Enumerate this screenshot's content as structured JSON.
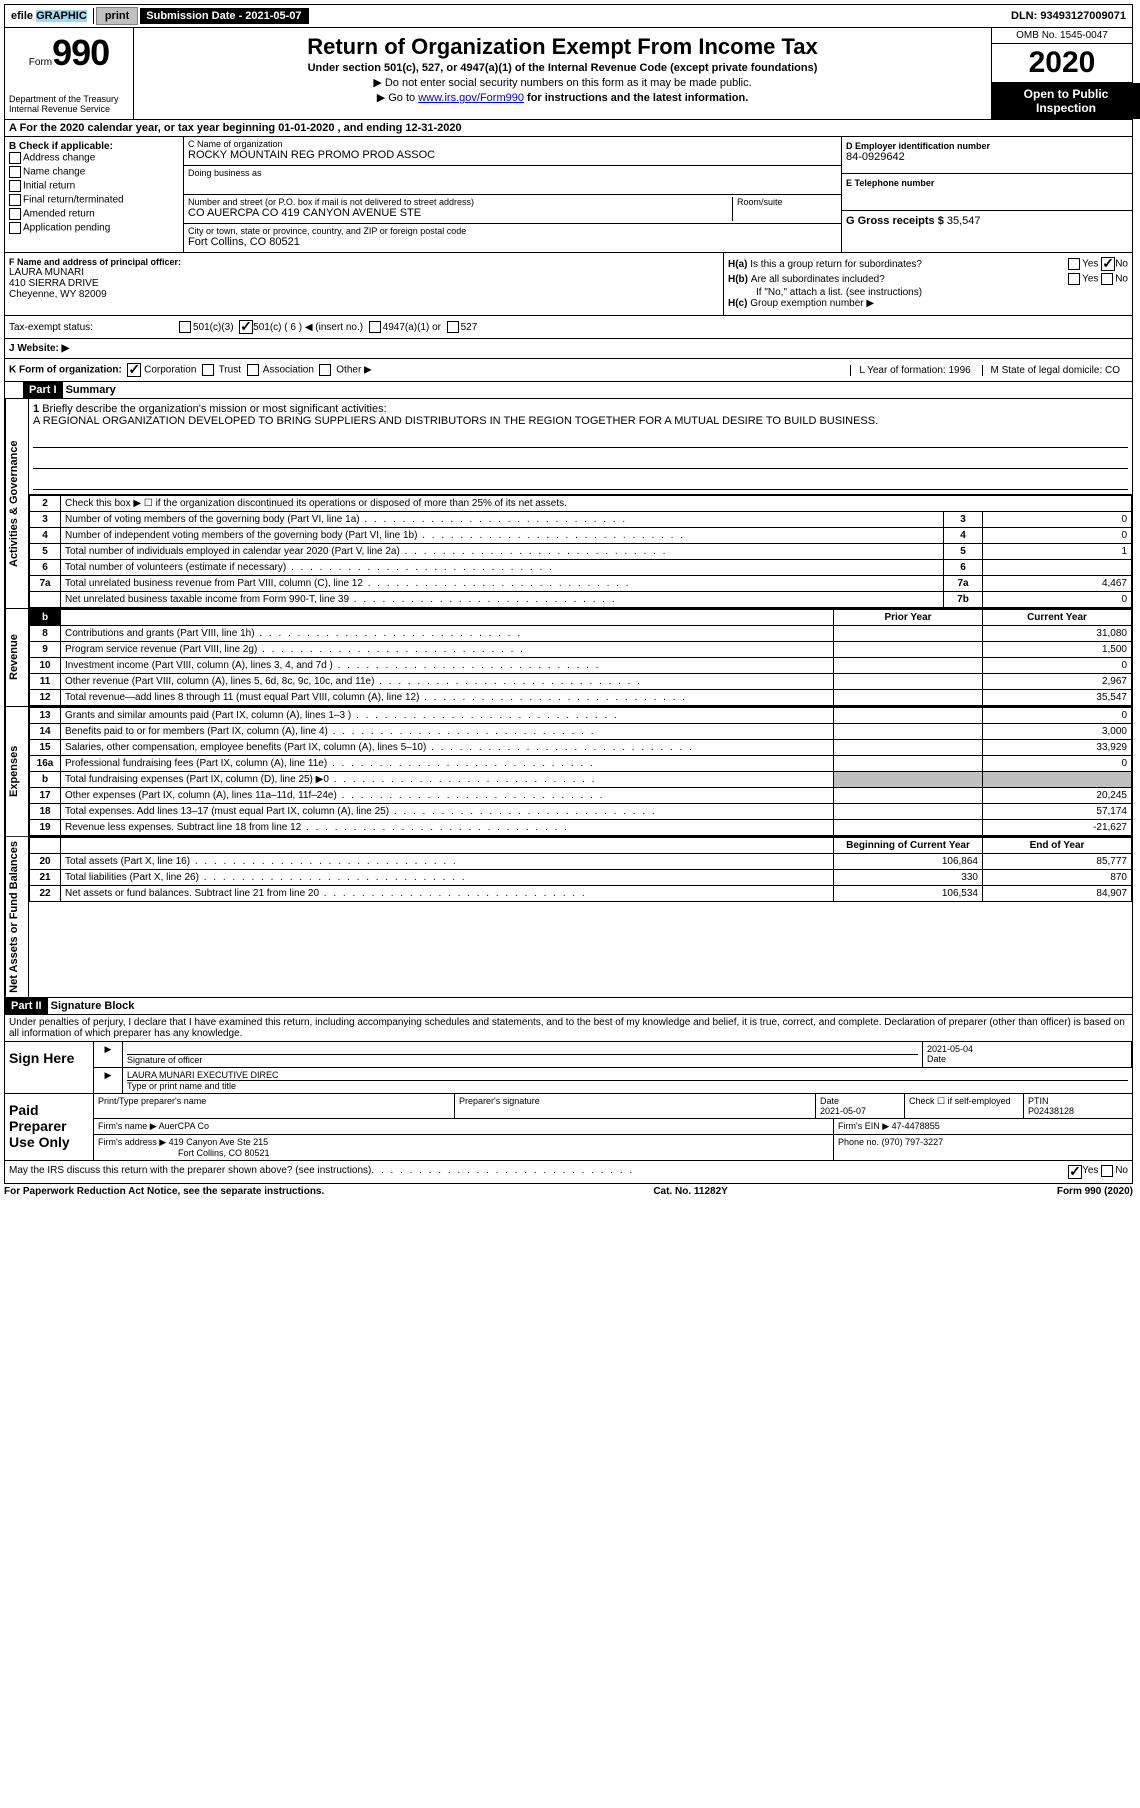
{
  "top_bar": {
    "efile": "efile",
    "graphic": "GRAPHIC",
    "print": "print",
    "sub_label": "Submission Date - 2021-05-07",
    "dln": "DLN: 93493127009071"
  },
  "header": {
    "form_prefix": "Form",
    "form_number": "990",
    "title": "Return of Organization Exempt From Income Tax",
    "subtitle1": "Under section 501(c), 527, or 4947(a)(1) of the Internal Revenue Code (except private foundations)",
    "subtitle2": "Do not enter social security numbers on this form as it may be made public.",
    "subtitle3_prefix": "Go to",
    "subtitle3_link": "www.irs.gov/Form990",
    "subtitle3_suffix": "for instructions and the latest information.",
    "omb": "OMB No. 1545-0047",
    "year": "2020",
    "dept": "Department of the Treasury\nInternal Revenue Service",
    "open_pub": "Open to Public Inspection"
  },
  "row_a": "A For the 2020 calendar year, or tax year beginning 01-01-2020    , and ending 12-31-2020",
  "section_b": {
    "label": "B Check if applicable:",
    "items": [
      "Address change",
      "Name change",
      "Initial return",
      "Final return/terminated",
      "Amended return",
      "Application pending"
    ]
  },
  "section_c": {
    "name_label": "C Name of organization",
    "name": "ROCKY MOUNTAIN REG PROMO PROD ASSOC",
    "dba_label": "Doing business as",
    "dba": "",
    "street_label": "Number and street (or P.O. box if mail is not delivered to street address)",
    "street": "CO AUERCPA CO 419 CANYON AVENUE STE",
    "room_label": "Room/suite",
    "room": "",
    "city_label": "City or town, state or province, country, and ZIP or foreign postal code",
    "city": "Fort Collins, CO  80521"
  },
  "section_d": {
    "label": "D Employer identification number",
    "value": "84-0929642"
  },
  "section_e": {
    "label": "E Telephone number",
    "value": ""
  },
  "section_g": {
    "label": "G Gross receipts $",
    "value": "35,547"
  },
  "section_f": {
    "label": "F  Name and address of principal officer:",
    "name": "LAURA MUNARI",
    "street": "410 SIERRA DRIVE",
    "city": "Cheyenne, WY  82009"
  },
  "section_h": {
    "ha_q": "Is this a group return for subordinates?",
    "hb_q": "Are all subordinates included?",
    "hc_q": "Group exemption number ▶",
    "note": "If \"No,\" attach a list. (see instructions)",
    "ha_label": "H(a)",
    "hb_label": "H(b)",
    "hc_label": "H(c)",
    "yes": "Yes",
    "no": "No"
  },
  "row_i": {
    "label": "Tax-exempt status:",
    "opts": [
      "501(c)(3)",
      "501(c) ( 6 ) ◀ (insert no.)",
      "4947(a)(1) or",
      "527"
    ]
  },
  "row_j": {
    "label": "J   Website: ▶"
  },
  "row_k": {
    "label": "K Form of organization:",
    "opts": [
      "Corporation",
      "Trust",
      "Association",
      "Other ▶"
    ],
    "l": "L Year of formation: 1996",
    "m": "M State of legal domicile: CO"
  },
  "part1": {
    "header": "Part I",
    "title": "Summary",
    "vlabel_gov": "Activities & Governance",
    "vlabel_rev": "Revenue",
    "vlabel_exp": "Expenses",
    "vlabel_net": "Net Assets or Fund Balances",
    "line1": "Briefly describe the organization's mission or most significant activities:",
    "mission": "A REGIONAL ORGANIZATION DEVELOPED TO BRING SUPPLIERS AND DISTRIBUTORS IN THE REGION TOGETHER FOR A MUTUAL DESIRE TO BUILD BUSINESS.",
    "line2": "Check this box ▶ ☐  if the organization discontinued its operations or disposed of more than 25% of its net assets.",
    "rows_gov": [
      {
        "n": "3",
        "d": "Number of voting members of the governing body (Part VI, line 1a)",
        "b": "3",
        "v": "0"
      },
      {
        "n": "4",
        "d": "Number of independent voting members of the governing body (Part VI, line 1b)",
        "b": "4",
        "v": "0"
      },
      {
        "n": "5",
        "d": "Total number of individuals employed in calendar year 2020 (Part V, line 2a)",
        "b": "5",
        "v": "1"
      },
      {
        "n": "6",
        "d": "Total number of volunteers (estimate if necessary)",
        "b": "6",
        "v": ""
      },
      {
        "n": "7a",
        "d": "Total unrelated business revenue from Part VIII, column (C), line 12",
        "b": "7a",
        "v": "4,467"
      },
      {
        "n": "",
        "d": "Net unrelated business taxable income from Form 990-T, line 39",
        "b": "7b",
        "v": "0"
      }
    ],
    "col_prior": "Prior Year",
    "col_current": "Current Year",
    "rows_rev": [
      {
        "n": "8",
        "d": "Contributions and grants (Part VIII, line 1h)",
        "p": "",
        "c": "31,080"
      },
      {
        "n": "9",
        "d": "Program service revenue (Part VIII, line 2g)",
        "p": "",
        "c": "1,500"
      },
      {
        "n": "10",
        "d": "Investment income (Part VIII, column (A), lines 3, 4, and 7d )",
        "p": "",
        "c": "0"
      },
      {
        "n": "11",
        "d": "Other revenue (Part VIII, column (A), lines 5, 6d, 8c, 9c, 10c, and 11e)",
        "p": "",
        "c": "2,967"
      },
      {
        "n": "12",
        "d": "Total revenue—add lines 8 through 11 (must equal Part VIII, column (A), line 12)",
        "p": "",
        "c": "35,547"
      }
    ],
    "rows_exp": [
      {
        "n": "13",
        "d": "Grants and similar amounts paid (Part IX, column (A), lines 1–3 )",
        "p": "",
        "c": "0"
      },
      {
        "n": "14",
        "d": "Benefits paid to or for members (Part IX, column (A), line 4)",
        "p": "",
        "c": "3,000"
      },
      {
        "n": "15",
        "d": "Salaries, other compensation, employee benefits (Part IX, column (A), lines 5–10)",
        "p": "",
        "c": "33,929"
      },
      {
        "n": "16a",
        "d": "Professional fundraising fees (Part IX, column (A), line 11e)",
        "p": "",
        "c": "0"
      },
      {
        "n": "b",
        "d": "Total fundraising expenses (Part IX, column (D), line 25) ▶0",
        "p": "grey",
        "c": "grey"
      },
      {
        "n": "17",
        "d": "Other expenses (Part IX, column (A), lines 11a–11d, 11f–24e)",
        "p": "",
        "c": "20,245"
      },
      {
        "n": "18",
        "d": "Total expenses. Add lines 13–17 (must equal Part IX, column (A), line 25)",
        "p": "",
        "c": "57,174"
      },
      {
        "n": "19",
        "d": "Revenue less expenses. Subtract line 18 from line 12",
        "p": "",
        "c": "-21,627"
      }
    ],
    "col_begin": "Beginning of Current Year",
    "col_end": "End of Year",
    "rows_net": [
      {
        "n": "20",
        "d": "Total assets (Part X, line 16)",
        "p": "106,864",
        "c": "85,777"
      },
      {
        "n": "21",
        "d": "Total liabilities (Part X, line 26)",
        "p": "330",
        "c": "870"
      },
      {
        "n": "22",
        "d": "Net assets or fund balances. Subtract line 21 from line 20",
        "p": "106,534",
        "c": "84,907"
      }
    ]
  },
  "part2": {
    "header": "Part II",
    "title": "Signature Block",
    "para": "Under penalties of perjury, I declare that I have examined this return, including accompanying schedules and statements, and to the best of my knowledge and belief, it is true, correct, and complete. Declaration of preparer (other than officer) is based on all information of which preparer has any knowledge.",
    "sign_here": "Sign Here",
    "sig_officer_label": "Signature of officer",
    "date_label": "Date",
    "date_val": "2021-05-04",
    "name_val": "LAURA MUNARI  EXECUTIVE DIREC",
    "name_label": "Type or print name and title",
    "paid": "Paid Preparer Use Only",
    "prep_name_label": "Print/Type preparer's name",
    "prep_sig_label": "Preparer's signature",
    "prep_date": "2021-05-07",
    "check_self": "Check ☐  if self-employed",
    "ptin_label": "PTIN",
    "ptin": "P02438128",
    "firm_name_label": "Firm's name    ▶",
    "firm_name": "AuerCPA Co",
    "firm_ein_label": "Firm's EIN ▶",
    "firm_ein": "47-4478855",
    "firm_addr_label": "Firm's address ▶",
    "firm_addr1": "419 Canyon Ave Ste 215",
    "firm_addr2": "Fort Collins, CO  80521",
    "phone_label": "Phone no.",
    "phone": "(970) 797-3227",
    "discuss": "May the IRS discuss this return with the preparer shown above? (see instructions)",
    "yes": "Yes",
    "no": "No"
  },
  "footer": {
    "left": "For Paperwork Reduction Act Notice, see the separate instructions.",
    "center": "Cat. No. 11282Y",
    "right": "Form 990 (2020)"
  }
}
